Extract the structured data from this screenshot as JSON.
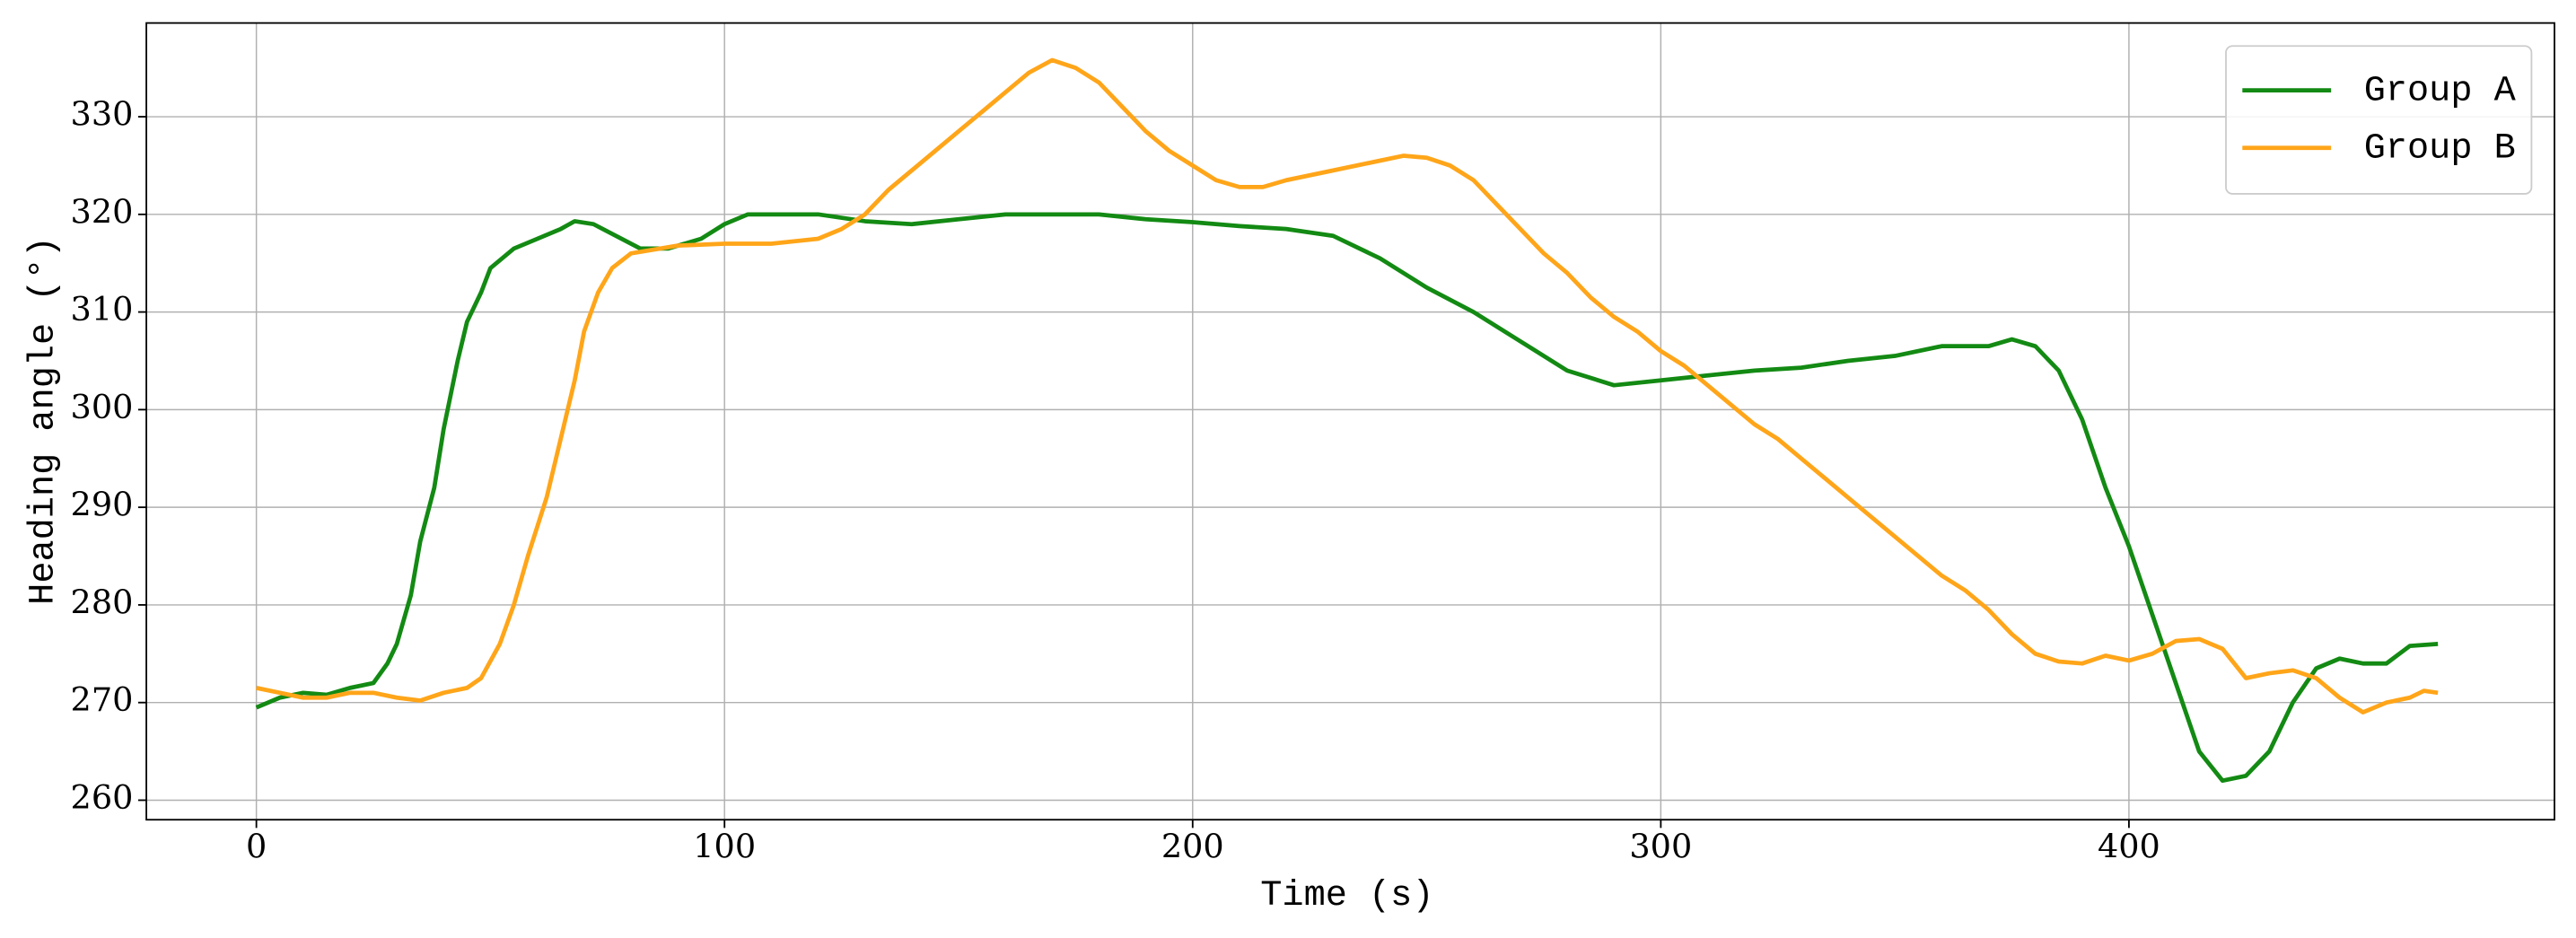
{
  "chart_data": {
    "type": "line",
    "xlabel": "Time (s)",
    "ylabel": "Heading angle (°)",
    "xlim": [
      -23.5,
      490.9
    ],
    "ylim": [
      258.0,
      339.6
    ],
    "xticks": [
      0,
      100,
      200,
      300,
      400
    ],
    "yticks": [
      260,
      270,
      280,
      290,
      300,
      310,
      320,
      330
    ],
    "grid": true,
    "legend": "upper right",
    "series": [
      {
        "name": "Group A",
        "color": "#138a13",
        "x": [
          0,
          5,
          10,
          15,
          20,
          25,
          28,
          30,
          33,
          35,
          38,
          40,
          43,
          45,
          48,
          50,
          55,
          60,
          65,
          68,
          72,
          78,
          82,
          88,
          95,
          100,
          105,
          110,
          120,
          130,
          140,
          150,
          160,
          170,
          180,
          190,
          200,
          210,
          220,
          230,
          240,
          250,
          260,
          270,
          280,
          290,
          300,
          310,
          320,
          330,
          340,
          350,
          360,
          370,
          375,
          380,
          385,
          390,
          395,
          400,
          405,
          410,
          415,
          420,
          425,
          430,
          435,
          440,
          445,
          450,
          455,
          460,
          466
        ],
        "values": [
          269.5,
          270.5,
          271,
          270.8,
          271.5,
          272,
          274,
          276,
          281,
          286.5,
          292,
          298,
          305,
          309,
          312,
          314.5,
          316.5,
          317.5,
          318.5,
          319.3,
          319,
          317.5,
          316.5,
          316.5,
          317.5,
          319,
          320,
          320,
          320,
          319.3,
          319,
          319.5,
          320,
          320,
          320,
          319.5,
          319.2,
          318.8,
          318.5,
          317.8,
          315.5,
          312.5,
          310,
          307,
          304,
          302.5,
          303,
          303.5,
          304,
          304.3,
          305,
          305.5,
          306.5,
          306.5,
          307.2,
          306.5,
          304,
          299,
          292,
          286,
          279,
          272,
          265,
          262,
          262.5,
          265,
          270,
          273.5,
          274.5,
          274,
          274,
          275.8,
          276
        ]
      },
      {
        "name": "Group B",
        "color": "#ffa519",
        "x": [
          0,
          5,
          10,
          15,
          20,
          25,
          30,
          35,
          40,
          45,
          48,
          52,
          55,
          58,
          62,
          65,
          68,
          70,
          73,
          76,
          80,
          90,
          100,
          110,
          120,
          125,
          130,
          135,
          140,
          145,
          150,
          155,
          160,
          165,
          170,
          175,
          180,
          185,
          190,
          195,
          200,
          205,
          210,
          215,
          220,
          230,
          240,
          245,
          250,
          255,
          260,
          265,
          270,
          275,
          280,
          285,
          290,
          295,
          300,
          305,
          310,
          315,
          320,
          325,
          330,
          335,
          340,
          345,
          350,
          355,
          360,
          365,
          370,
          375,
          380,
          385,
          390,
          395,
          400,
          405,
          410,
          415,
          420,
          425,
          430,
          435,
          440,
          445,
          450,
          455,
          460,
          463,
          466
        ],
        "values": [
          271.5,
          271,
          270.5,
          270.5,
          271,
          271,
          270.5,
          270.2,
          271,
          271.5,
          272.5,
          276,
          280,
          285,
          291,
          297,
          303,
          308,
          312,
          314.5,
          316,
          316.8,
          317,
          317,
          317.5,
          318.5,
          320,
          322.5,
          324.5,
          326.5,
          328.5,
          330.5,
          332.5,
          334.5,
          335.8,
          335,
          333.5,
          331,
          328.5,
          326.5,
          325,
          323.5,
          322.8,
          322.8,
          323.5,
          324.5,
          325.5,
          326,
          325.8,
          325,
          323.5,
          321,
          318.5,
          316,
          314,
          311.5,
          309.5,
          308,
          306,
          304.5,
          302.5,
          300.5,
          298.5,
          297,
          295,
          293,
          291,
          289,
          287,
          285,
          283,
          281.5,
          279.5,
          277,
          275,
          274.2,
          274,
          274.8,
          274.3,
          275,
          276.3,
          276.5,
          275.5,
          272.5,
          273,
          273.3,
          272.5,
          270.5,
          269,
          270,
          270.5,
          271.2,
          271
        ]
      }
    ]
  }
}
